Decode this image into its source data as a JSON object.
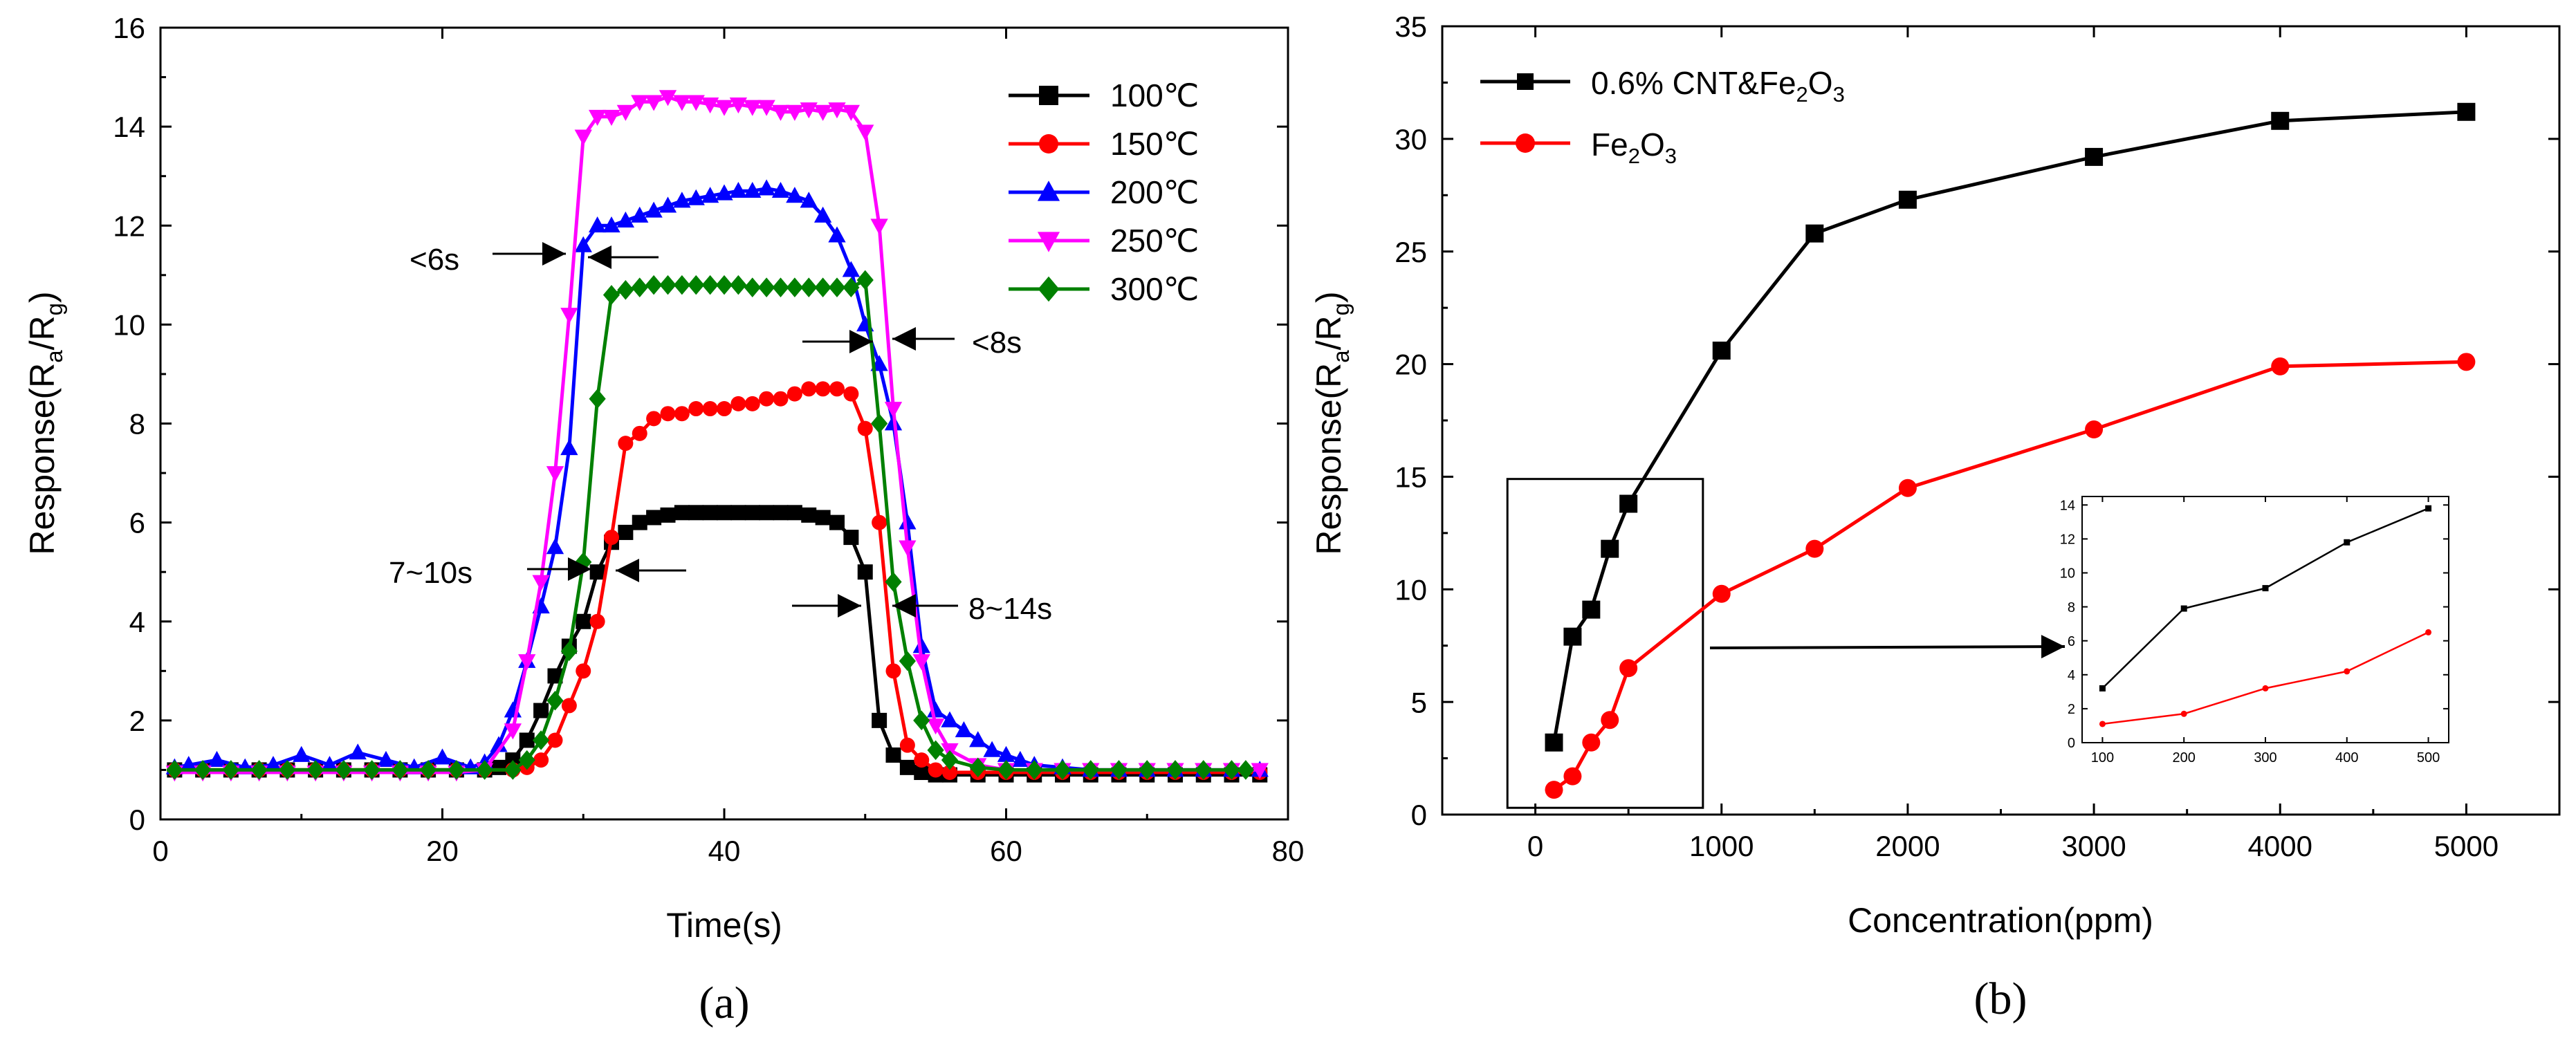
{
  "chart_data": [
    {
      "id": "a",
      "type": "line",
      "panel_label": "(a)",
      "xlabel": "Time(s)",
      "ylabel": {
        "main": "Response(R",
        "sub1": "a",
        "mid": "/R",
        "sub2": "g",
        "end": ")"
      },
      "xlim": [
        0,
        80
      ],
      "ylim": [
        0,
        16
      ],
      "xticks": [
        0,
        20,
        40,
        60,
        80
      ],
      "yticks": [
        0,
        2,
        4,
        6,
        8,
        10,
        12,
        14,
        16
      ],
      "legend_position": "top-right",
      "series": [
        {
          "name": "100℃",
          "color": "#000000",
          "marker": "square",
          "x": [
            1,
            3,
            5,
            7,
            9,
            11,
            13,
            15,
            17,
            19,
            21,
            23,
            24,
            25,
            26,
            27,
            28,
            29,
            30,
            31,
            32,
            33,
            34,
            35,
            36,
            37,
            38,
            39,
            40,
            41,
            42,
            43,
            44,
            45,
            46,
            47,
            48,
            49,
            50,
            51,
            52,
            53,
            54,
            55,
            56,
            58,
            60,
            62,
            64,
            66,
            68,
            70,
            72,
            74,
            76,
            78
          ],
          "y": [
            1.0,
            1.0,
            1.0,
            1.0,
            1.0,
            1.0,
            1.0,
            1.0,
            1.0,
            1.0,
            1.0,
            1.0,
            1.05,
            1.2,
            1.6,
            2.2,
            2.9,
            3.5,
            4.0,
            5.0,
            5.6,
            5.8,
            6.0,
            6.1,
            6.15,
            6.2,
            6.2,
            6.2,
            6.2,
            6.2,
            6.2,
            6.2,
            6.2,
            6.2,
            6.15,
            6.1,
            6.0,
            5.7,
            5.0,
            2.0,
            1.3,
            1.05,
            0.95,
            0.9,
            0.9,
            0.9,
            0.9,
            0.9,
            0.9,
            0.9,
            0.9,
            0.9,
            0.9,
            0.9,
            0.9,
            0.9
          ]
        },
        {
          "name": "150℃",
          "color": "#ff0000",
          "marker": "circle",
          "x": [
            1,
            3,
            5,
            7,
            9,
            11,
            13,
            15,
            17,
            19,
            21,
            23,
            25,
            26,
            27,
            28,
            29,
            30,
            31,
            32,
            33,
            34,
            35,
            36,
            37,
            38,
            39,
            40,
            41,
            42,
            43,
            44,
            45,
            46,
            47,
            48,
            49,
            50,
            51,
            52,
            53,
            54,
            55,
            56,
            58,
            60,
            62,
            64,
            66,
            68,
            70,
            72,
            74,
            76,
            78
          ],
          "y": [
            1.0,
            1.0,
            1.0,
            1.0,
            1.0,
            1.0,
            1.0,
            1.0,
            1.0,
            1.0,
            1.0,
            1.0,
            1.0,
            1.05,
            1.2,
            1.6,
            2.3,
            3.0,
            4.0,
            5.7,
            7.6,
            7.8,
            8.1,
            8.2,
            8.2,
            8.3,
            8.3,
            8.3,
            8.4,
            8.4,
            8.5,
            8.5,
            8.6,
            8.7,
            8.7,
            8.7,
            8.6,
            7.9,
            6.0,
            3.0,
            1.5,
            1.2,
            1.0,
            0.95,
            0.95,
            0.95,
            0.95,
            0.95,
            0.95,
            0.95,
            0.95,
            0.95,
            0.95,
            0.95,
            0.95
          ]
        },
        {
          "name": "200℃",
          "color": "#0000ff",
          "marker": "triangle-up",
          "x": [
            1,
            2,
            4,
            6,
            8,
            10,
            12,
            14,
            16,
            18,
            20,
            22,
            23,
            24,
            25,
            26,
            27,
            28,
            29,
            30,
            31,
            32,
            33,
            34,
            35,
            36,
            37,
            38,
            39,
            40,
            41,
            42,
            43,
            44,
            45,
            46,
            47,
            48,
            49,
            50,
            51,
            52,
            53,
            54,
            55,
            56,
            57,
            58,
            59,
            60,
            61,
            62,
            64,
            66,
            68,
            70,
            72,
            74,
            76,
            78
          ],
          "y": [
            1.05,
            1.1,
            1.2,
            1.05,
            1.1,
            1.3,
            1.1,
            1.35,
            1.2,
            1.05,
            1.25,
            1.05,
            1.15,
            1.5,
            2.2,
            3.2,
            4.3,
            5.5,
            7.5,
            11.6,
            12.0,
            12.0,
            12.1,
            12.2,
            12.3,
            12.4,
            12.5,
            12.55,
            12.6,
            12.65,
            12.7,
            12.7,
            12.75,
            12.7,
            12.6,
            12.5,
            12.2,
            11.8,
            11.1,
            10.0,
            9.2,
            8.0,
            6.0,
            3.5,
            2.2,
            2.0,
            1.8,
            1.6,
            1.4,
            1.3,
            1.2,
            1.1,
            1.05,
            1.0,
            1.0,
            1.0,
            1.0,
            1.0,
            1.0,
            1.0
          ]
        },
        {
          "name": "250℃",
          "color": "#ff00ff",
          "marker": "triangle-down",
          "x": [
            1,
            3,
            5,
            7,
            9,
            11,
            13,
            15,
            17,
            19,
            21,
            23,
            25,
            26,
            27,
            28,
            29,
            30,
            31,
            32,
            33,
            34,
            35,
            36,
            37,
            38,
            39,
            40,
            41,
            42,
            43,
            44,
            45,
            46,
            47,
            48,
            49,
            50,
            51,
            52,
            53,
            54,
            55,
            56,
            58,
            60,
            62,
            64,
            66,
            68,
            70,
            72,
            74,
            76,
            78
          ],
          "y": [
            0.95,
            0.95,
            0.95,
            0.95,
            0.95,
            0.95,
            0.95,
            0.95,
            0.95,
            0.95,
            0.95,
            1.0,
            1.8,
            3.2,
            4.8,
            7.0,
            10.2,
            13.8,
            14.2,
            14.2,
            14.3,
            14.5,
            14.5,
            14.6,
            14.5,
            14.5,
            14.45,
            14.4,
            14.45,
            14.4,
            14.4,
            14.3,
            14.3,
            14.35,
            14.3,
            14.35,
            14.3,
            13.9,
            12.0,
            8.3,
            5.5,
            3.2,
            1.9,
            1.4,
            1.1,
            1.0,
            1.0,
            1.0,
            1.0,
            1.0,
            1.0,
            1.0,
            1.0,
            1.0,
            1.0
          ]
        },
        {
          "name": "300℃",
          "color": "#008000",
          "marker": "diamond",
          "x": [
            1,
            3,
            5,
            7,
            9,
            11,
            13,
            15,
            17,
            19,
            21,
            23,
            25,
            26,
            27,
            28,
            29,
            30,
            31,
            32,
            33,
            34,
            35,
            36,
            37,
            38,
            39,
            40,
            41,
            42,
            43,
            44,
            45,
            46,
            47,
            48,
            49,
            50,
            51,
            52,
            53,
            54,
            55,
            56,
            58,
            60,
            62,
            64,
            66,
            68,
            70,
            72,
            74,
            76,
            77
          ],
          "y": [
            1.0,
            1.0,
            1.0,
            1.0,
            1.0,
            1.0,
            1.0,
            1.0,
            1.0,
            1.0,
            1.0,
            1.0,
            1.0,
            1.2,
            1.6,
            2.4,
            3.4,
            5.2,
            8.5,
            10.6,
            10.7,
            10.75,
            10.8,
            10.8,
            10.8,
            10.8,
            10.8,
            10.8,
            10.8,
            10.75,
            10.75,
            10.75,
            10.75,
            10.75,
            10.75,
            10.75,
            10.75,
            10.9,
            8.0,
            4.8,
            3.2,
            2.0,
            1.4,
            1.2,
            1.05,
            1.0,
            1.0,
            1.0,
            1.0,
            1.0,
            1.0,
            1.0,
            1.0,
            1.0,
            1.0
          ]
        }
      ],
      "annotations": [
        "<6s",
        "<8s",
        "7~10s",
        "8~14s"
      ]
    },
    {
      "id": "b",
      "type": "line",
      "panel_label": "(b)",
      "xlabel": "Concentration(ppm)",
      "ylabel": {
        "main": "Response(R",
        "sub1": "a",
        "mid": "/R",
        "sub2": "g",
        "end": ")"
      },
      "xlim": [
        -500,
        5500
      ],
      "ylim": [
        0,
        35
      ],
      "xticks": [
        0,
        1000,
        2000,
        3000,
        4000,
        5000
      ],
      "yticks": [
        0,
        5,
        10,
        15,
        20,
        25,
        30,
        35
      ],
      "legend_position": "top-left",
      "series": [
        {
          "name_main": "0.6% CNT&Fe",
          "name_sub": "2",
          "name_tail": "O",
          "name_sub2": "3",
          "color": "#000000",
          "marker": "square",
          "x": [
            100,
            200,
            300,
            400,
            500,
            1000,
            1500,
            2000,
            3000,
            4000,
            5000
          ],
          "y": [
            3.2,
            7.9,
            9.1,
            11.8,
            13.8,
            20.6,
            25.8,
            27.3,
            29.2,
            30.8,
            31.2
          ]
        },
        {
          "name_main": "Fe",
          "name_sub": "2",
          "name_tail": "O",
          "name_sub2": "3",
          "color": "#ff0000",
          "marker": "circle",
          "x": [
            100,
            200,
            300,
            400,
            500,
            1000,
            1500,
            2000,
            3000,
            4000,
            5000
          ],
          "y": [
            1.1,
            1.7,
            3.2,
            4.2,
            6.5,
            9.8,
            11.8,
            14.5,
            17.1,
            19.9,
            20.1
          ]
        }
      ],
      "zoom_box": {
        "xlim": [
          -150,
          900
        ],
        "ylim": [
          0.3,
          14.9
        ]
      },
      "inset": {
        "xlim": [
          75,
          525
        ],
        "ylim": [
          0,
          14.5
        ],
        "xticks": [
          100,
          200,
          300,
          400,
          500
        ],
        "yticks": [
          0,
          2,
          4,
          6,
          8,
          10,
          12,
          14
        ],
        "series": [
          {
            "color": "#000000",
            "marker": "square",
            "x": [
              100,
              200,
              300,
              400,
              500
            ],
            "y": [
              3.2,
              7.9,
              9.1,
              11.8,
              13.8
            ]
          },
          {
            "color": "#ff0000",
            "marker": "circle",
            "x": [
              100,
              200,
              300,
              400,
              500
            ],
            "y": [
              1.1,
              1.7,
              3.2,
              4.2,
              6.5
            ]
          }
        ]
      }
    }
  ]
}
